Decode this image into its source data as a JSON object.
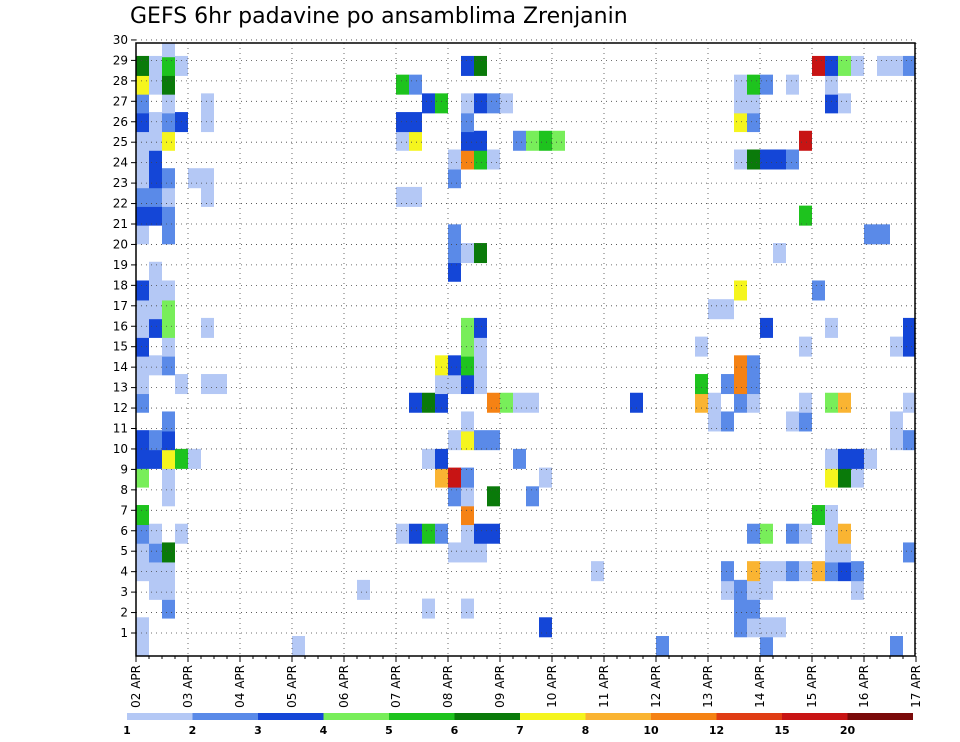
{
  "chart_data": {
    "type": "heatmap",
    "title": "GEFS 6hr padavine po ansamblima Zrenjanin",
    "y_ticks": [
      "1",
      "2",
      "3",
      "4",
      "5",
      "6",
      "7",
      "8",
      "9",
      "10",
      "11",
      "12",
      "13",
      "14",
      "15",
      "16",
      "17",
      "18",
      "19",
      "20",
      "21",
      "22",
      "23",
      "24",
      "25",
      "26",
      "27",
      "28",
      "29",
      "30"
    ],
    "x_ticks": [
      "02 APR",
      "03 APR",
      "04 APR",
      "05 APR",
      "06 APR",
      "07 APR",
      "08 APR",
      "09 APR",
      "10 APR",
      "11 APR",
      "12 APR",
      "13 APR",
      "14 APR",
      "15 APR",
      "16 APR",
      "17 APR"
    ],
    "colorbar": {
      "levels": [
        "1",
        "2",
        "3",
        "4",
        "5",
        "6",
        "7",
        "8",
        "10",
        "12",
        "15",
        "20"
      ],
      "colors": [
        "#b4c8f5",
        "#5a8ae8",
        "#1446d7",
        "#78ee5a",
        "#1ec31e",
        "#0a7a0a",
        "#f5f51e",
        "#fab432",
        "#f58214",
        "#e03c14",
        "#c81414",
        "#7a0a0a"
      ]
    },
    "ylim": [
      0,
      31
    ],
    "x_steps_per_day": 4,
    "x_total_steps": 60,
    "cells": [
      [
        0,
        0,
        1
      ],
      [
        12,
        0,
        1
      ],
      [
        40,
        0,
        2
      ],
      [
        48,
        0,
        2
      ],
      [
        58,
        0,
        2
      ],
      [
        0,
        1,
        1
      ],
      [
        31,
        1,
        3
      ],
      [
        46,
        1,
        2
      ],
      [
        47,
        1,
        1
      ],
      [
        48,
        1,
        1
      ],
      [
        49,
        1,
        1
      ],
      [
        2,
        2,
        2
      ],
      [
        22,
        2,
        1
      ],
      [
        25,
        2,
        1
      ],
      [
        46,
        2,
        2
      ],
      [
        47,
        2,
        2
      ],
      [
        1,
        3,
        1
      ],
      [
        2,
        3,
        1
      ],
      [
        17,
        3,
        1
      ],
      [
        45,
        3,
        1
      ],
      [
        46,
        3,
        2
      ],
      [
        47,
        3,
        1
      ],
      [
        48,
        3,
        1
      ],
      [
        55,
        3,
        1
      ],
      [
        0,
        4,
        1
      ],
      [
        1,
        4,
        1
      ],
      [
        2,
        4,
        1
      ],
      [
        35,
        4,
        1
      ],
      [
        45,
        4,
        2
      ],
      [
        47,
        4,
        8
      ],
      [
        48,
        4,
        1
      ],
      [
        49,
        4,
        1
      ],
      [
        50,
        4,
        2
      ],
      [
        51,
        4,
        1
      ],
      [
        52,
        4,
        8
      ],
      [
        53,
        4,
        2
      ],
      [
        54,
        4,
        3
      ],
      [
        55,
        4,
        2
      ],
      [
        0,
        5,
        1
      ],
      [
        1,
        5,
        2
      ],
      [
        2,
        5,
        6
      ],
      [
        24,
        5,
        1
      ],
      [
        25,
        5,
        1
      ],
      [
        26,
        5,
        1
      ],
      [
        53,
        5,
        1
      ],
      [
        54,
        5,
        1
      ],
      [
        59,
        5,
        2
      ],
      [
        0,
        6,
        2
      ],
      [
        1,
        6,
        1
      ],
      [
        3,
        6,
        1
      ],
      [
        20,
        6,
        1
      ],
      [
        21,
        6,
        3
      ],
      [
        22,
        6,
        5
      ],
      [
        23,
        6,
        2
      ],
      [
        25,
        6,
        1
      ],
      [
        26,
        6,
        3
      ],
      [
        27,
        6,
        3
      ],
      [
        47,
        6,
        2
      ],
      [
        48,
        6,
        4
      ],
      [
        50,
        6,
        2
      ],
      [
        51,
        6,
        1
      ],
      [
        53,
        6,
        1
      ],
      [
        54,
        6,
        8
      ],
      [
        0,
        7,
        5
      ],
      [
        25,
        7,
        9
      ],
      [
        52,
        7,
        5
      ],
      [
        53,
        7,
        1
      ],
      [
        2,
        8,
        1
      ],
      [
        24,
        8,
        2
      ],
      [
        25,
        8,
        1
      ],
      [
        27,
        8,
        6
      ],
      [
        30,
        8,
        2
      ],
      [
        0,
        9,
        4
      ],
      [
        2,
        9,
        1
      ],
      [
        23,
        9,
        8
      ],
      [
        24,
        9,
        11
      ],
      [
        25,
        9,
        2
      ],
      [
        31,
        9,
        1
      ],
      [
        53,
        9,
        7
      ],
      [
        54,
        9,
        6
      ],
      [
        55,
        9,
        1
      ],
      [
        0,
        10,
        3
      ],
      [
        1,
        10,
        3
      ],
      [
        2,
        10,
        7
      ],
      [
        3,
        10,
        5
      ],
      [
        4,
        10,
        1
      ],
      [
        22,
        10,
        1
      ],
      [
        23,
        10,
        3
      ],
      [
        29,
        10,
        2
      ],
      [
        53,
        10,
        1
      ],
      [
        54,
        10,
        3
      ],
      [
        55,
        10,
        3
      ],
      [
        56,
        10,
        1
      ],
      [
        0,
        11,
        3
      ],
      [
        1,
        11,
        2
      ],
      [
        2,
        11,
        3
      ],
      [
        24,
        11,
        1
      ],
      [
        25,
        11,
        7
      ],
      [
        26,
        11,
        2
      ],
      [
        27,
        11,
        2
      ],
      [
        58,
        11,
        1
      ],
      [
        59,
        11,
        2
      ],
      [
        2,
        12,
        2
      ],
      [
        25,
        12,
        1
      ],
      [
        44,
        12,
        1
      ],
      [
        45,
        12,
        2
      ],
      [
        50,
        12,
        1
      ],
      [
        51,
        12,
        2
      ],
      [
        58,
        12,
        1
      ],
      [
        0,
        13,
        2
      ],
      [
        21,
        13,
        3
      ],
      [
        22,
        13,
        6
      ],
      [
        23,
        13,
        3
      ],
      [
        27,
        13,
        9
      ],
      [
        28,
        13,
        4
      ],
      [
        29,
        13,
        1
      ],
      [
        30,
        13,
        1
      ],
      [
        38,
        13,
        3
      ],
      [
        43,
        13,
        8
      ],
      [
        44,
        13,
        1
      ],
      [
        46,
        13,
        2
      ],
      [
        47,
        13,
        1
      ],
      [
        51,
        13,
        1
      ],
      [
        53,
        13,
        4
      ],
      [
        54,
        13,
        8
      ],
      [
        59,
        13,
        1
      ],
      [
        0,
        14,
        1
      ],
      [
        3,
        14,
        1
      ],
      [
        5,
        14,
        1
      ],
      [
        6,
        14,
        1
      ],
      [
        23,
        14,
        1
      ],
      [
        24,
        14,
        1
      ],
      [
        25,
        14,
        3
      ],
      [
        26,
        14,
        1
      ],
      [
        43,
        14,
        5
      ],
      [
        45,
        14,
        2
      ],
      [
        46,
        14,
        9
      ],
      [
        47,
        14,
        2
      ],
      [
        0,
        15,
        1
      ],
      [
        1,
        15,
        1
      ],
      [
        2,
        15,
        2
      ],
      [
        23,
        15,
        7
      ],
      [
        24,
        15,
        3
      ],
      [
        25,
        15,
        5
      ],
      [
        26,
        15,
        1
      ],
      [
        46,
        15,
        9
      ],
      [
        47,
        15,
        2
      ],
      [
        0,
        16,
        3
      ],
      [
        2,
        16,
        1
      ],
      [
        25,
        16,
        4
      ],
      [
        26,
        16,
        1
      ],
      [
        43,
        16,
        1
      ],
      [
        51,
        16,
        1
      ],
      [
        58,
        16,
        1
      ],
      [
        59,
        16,
        3
      ],
      [
        0,
        17,
        1
      ],
      [
        1,
        17,
        3
      ],
      [
        2,
        17,
        4
      ],
      [
        5,
        17,
        1
      ],
      [
        25,
        17,
        4
      ],
      [
        26,
        17,
        3
      ],
      [
        48,
        17,
        3
      ],
      [
        53,
        17,
        1
      ],
      [
        59,
        17,
        3
      ],
      [
        0,
        18,
        1
      ],
      [
        1,
        18,
        1
      ],
      [
        2,
        18,
        4
      ],
      [
        44,
        18,
        1
      ],
      [
        45,
        18,
        1
      ],
      [
        0,
        19,
        3
      ],
      [
        1,
        19,
        1
      ],
      [
        2,
        19,
        1
      ],
      [
        46,
        19,
        7
      ],
      [
        52,
        19,
        2
      ],
      [
        1,
        20,
        1
      ],
      [
        24,
        20,
        3
      ],
      [
        24,
        21,
        2
      ],
      [
        25,
        21,
        1
      ],
      [
        26,
        21,
        6
      ],
      [
        49,
        21,
        1
      ],
      [
        0,
        22,
        1
      ],
      [
        2,
        22,
        2
      ],
      [
        24,
        22,
        2
      ],
      [
        56,
        22,
        2
      ],
      [
        57,
        22,
        2
      ],
      [
        0,
        23,
        3
      ],
      [
        1,
        23,
        3
      ],
      [
        2,
        23,
        2
      ],
      [
        51,
        23,
        5
      ],
      [
        0,
        24,
        2
      ],
      [
        1,
        24,
        2
      ],
      [
        2,
        24,
        1
      ],
      [
        5,
        24,
        1
      ],
      [
        20,
        24,
        1
      ],
      [
        21,
        24,
        1
      ],
      [
        0,
        25,
        1
      ],
      [
        1,
        25,
        3
      ],
      [
        2,
        25,
        2
      ],
      [
        4,
        25,
        1
      ],
      [
        5,
        25,
        1
      ],
      [
        24,
        25,
        2
      ],
      [
        0,
        26,
        1
      ],
      [
        1,
        26,
        3
      ],
      [
        24,
        26,
        1
      ],
      [
        25,
        26,
        9
      ],
      [
        26,
        26,
        5
      ],
      [
        27,
        26,
        1
      ],
      [
        46,
        26,
        1
      ],
      [
        47,
        26,
        6
      ],
      [
        48,
        26,
        3
      ],
      [
        49,
        26,
        3
      ],
      [
        50,
        26,
        2
      ],
      [
        0,
        27,
        1
      ],
      [
        1,
        27,
        1
      ],
      [
        2,
        27,
        7
      ],
      [
        20,
        27,
        1
      ],
      [
        21,
        27,
        7
      ],
      [
        25,
        27,
        3
      ],
      [
        26,
        27,
        3
      ],
      [
        29,
        27,
        2
      ],
      [
        30,
        27,
        4
      ],
      [
        31,
        27,
        5
      ],
      [
        32,
        27,
        4
      ],
      [
        51,
        27,
        11
      ],
      [
        0,
        28,
        3
      ],
      [
        1,
        28,
        1
      ],
      [
        2,
        28,
        2
      ],
      [
        3,
        28,
        3
      ],
      [
        5,
        28,
        1
      ],
      [
        20,
        28,
        3
      ],
      [
        21,
        28,
        3
      ],
      [
        25,
        28,
        2
      ],
      [
        46,
        28,
        7
      ],
      [
        47,
        28,
        2
      ],
      [
        0,
        29,
        2
      ],
      [
        2,
        29,
        1
      ],
      [
        5,
        29,
        1
      ],
      [
        22,
        29,
        3
      ],
      [
        23,
        29,
        5
      ],
      [
        25,
        29,
        1
      ],
      [
        26,
        29,
        3
      ],
      [
        27,
        29,
        2
      ],
      [
        28,
        29,
        1
      ],
      [
        46,
        29,
        1
      ],
      [
        47,
        29,
        1
      ],
      [
        53,
        29,
        3
      ],
      [
        54,
        29,
        1
      ],
      [
        0,
        30,
        7
      ],
      [
        1,
        30,
        1
      ],
      [
        2,
        30,
        6
      ],
      [
        20,
        30,
        5
      ],
      [
        21,
        30,
        2
      ],
      [
        46,
        30,
        1
      ],
      [
        47,
        30,
        5
      ],
      [
        48,
        30,
        2
      ],
      [
        50,
        30,
        1
      ],
      [
        53,
        30,
        1
      ],
      [
        0,
        31,
        6
      ],
      [
        1,
        31,
        1
      ],
      [
        2,
        31,
        5
      ],
      [
        3,
        31,
        1
      ],
      [
        25,
        31,
        3
      ],
      [
        26,
        31,
        6
      ],
      [
        52,
        31,
        11
      ],
      [
        53,
        31,
        3
      ],
      [
        54,
        31,
        4
      ],
      [
        55,
        31,
        1
      ],
      [
        57,
        31,
        1
      ],
      [
        58,
        31,
        1
      ],
      [
        59,
        31,
        2
      ],
      [
        60,
        31,
        3
      ],
      [
        2,
        32,
        1
      ],
      [
        2,
        33,
        1
      ],
      [
        3,
        33,
        2
      ],
      [
        59,
        33,
        1
      ],
      [
        60,
        33,
        1
      ]
    ]
  }
}
